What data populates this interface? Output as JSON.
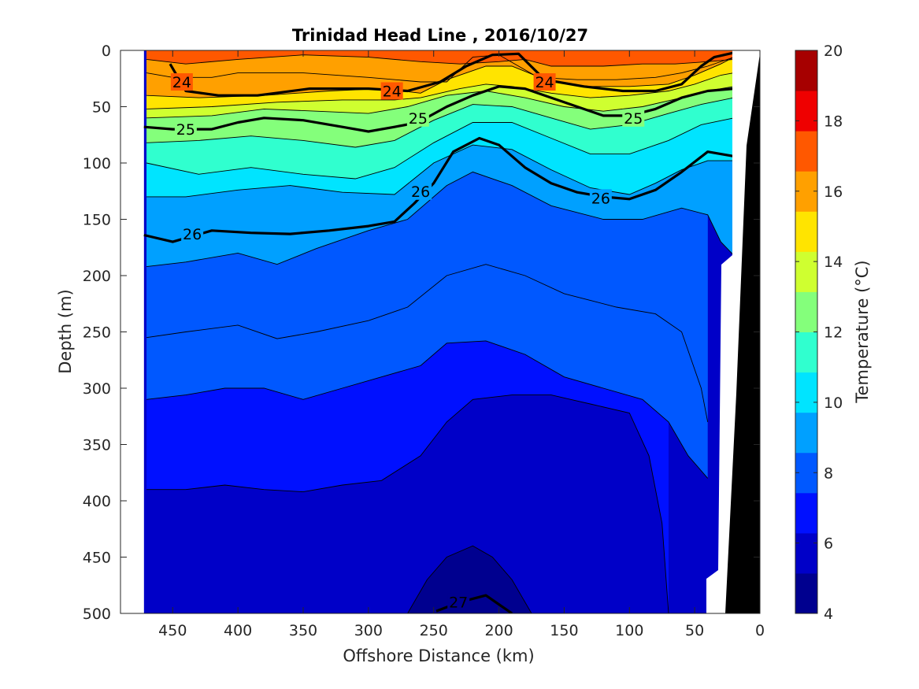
{
  "chart_data": {
    "type": "heatmap",
    "title": "Trinidad Head Line , 2016/10/27",
    "xlabel": "Offshore Distance (km)",
    "ylabel": "Depth (m)",
    "colorbar_label": "Temperature (°C)",
    "xlim": [
      490,
      0
    ],
    "ylim": [
      0,
      500
    ],
    "x_reversed": true,
    "y_reversed": true,
    "x_ticks": [
      "450",
      "400",
      "350",
      "300",
      "250",
      "200",
      "150",
      "100",
      "50",
      "0"
    ],
    "y_ticks": [
      "0",
      "50",
      "100",
      "150",
      "200",
      "250",
      "300",
      "350",
      "400",
      "450",
      "500"
    ],
    "colorbar_ticks": [
      "4",
      "6",
      "8",
      "10",
      "12",
      "14",
      "16",
      "18",
      "20"
    ],
    "colorbar_range": [
      4,
      20
    ],
    "data_extent_km": [
      472,
      20
    ],
    "colormap": [
      "#00008f",
      "#0000c8",
      "#0010ff",
      "#0058ff",
      "#00a0ff",
      "#00e4ff",
      "#30ffcf",
      "#84ff7b",
      "#cfff30",
      "#ffe400",
      "#ffa000",
      "#ff5800",
      "#ef0000",
      "#a60000"
    ],
    "isotherms": [
      {
        "T": 17,
        "x": [
          470,
          440,
          400,
          350,
          300,
          260,
          230,
          200,
          180,
          160,
          120,
          90,
          65,
          40,
          20
        ],
        "d": [
          8,
          12,
          8,
          4,
          6,
          10,
          12,
          10,
          8,
          14,
          14,
          12,
          12,
          10,
          8
        ]
      },
      {
        "T": 16,
        "x": [
          470,
          450,
          420,
          400,
          380,
          350,
          300,
          260,
          240,
          220,
          200,
          170,
          140,
          110,
          80,
          60,
          40,
          20
        ],
        "d": [
          20,
          24,
          24,
          20,
          20,
          20,
          24,
          28,
          28,
          6,
          4,
          24,
          26,
          26,
          24,
          20,
          14,
          6
        ]
      },
      {
        "T": 15,
        "x": [
          470,
          430,
          380,
          330,
          290,
          260,
          240,
          210,
          190,
          160,
          130,
          100,
          70,
          50,
          30,
          20
        ],
        "d": [
          40,
          42,
          40,
          36,
          34,
          38,
          26,
          14,
          14,
          28,
          32,
          32,
          30,
          22,
          12,
          6
        ]
      },
      {
        "T": 14,
        "x": [
          470,
          420,
          370,
          320,
          280,
          260,
          230,
          210,
          190,
          160,
          130,
          100,
          70,
          50,
          30,
          20
        ],
        "d": [
          52,
          50,
          46,
          44,
          44,
          42,
          34,
          30,
          32,
          38,
          42,
          40,
          36,
          30,
          22,
          20
        ]
      },
      {
        "T": 13,
        "x": [
          470,
          420,
          380,
          340,
          300,
          270,
          240,
          210,
          180,
          150,
          120,
          90,
          60,
          40,
          20
        ],
        "d": [
          60,
          58,
          52,
          54,
          56,
          50,
          40,
          36,
          42,
          50,
          54,
          50,
          42,
          36,
          32
        ]
      },
      {
        "T": 12,
        "x": [
          470,
          430,
          390,
          350,
          310,
          280,
          250,
          220,
          190,
          160,
          130,
          100,
          70,
          45,
          20
        ],
        "d": [
          82,
          80,
          76,
          80,
          86,
          80,
          62,
          48,
          50,
          60,
          70,
          66,
          56,
          48,
          42
        ]
      },
      {
        "T": 11,
        "x": [
          470,
          430,
          390,
          350,
          310,
          280,
          250,
          220,
          190,
          160,
          130,
          100,
          70,
          45,
          20
        ],
        "d": [
          100,
          110,
          104,
          110,
          114,
          104,
          82,
          64,
          64,
          78,
          92,
          92,
          80,
          66,
          60
        ]
      },
      {
        "T": 10,
        "x": [
          470,
          440,
          400,
          360,
          320,
          280,
          250,
          220,
          190,
          160,
          130,
          100,
          80,
          60,
          40,
          20
        ],
        "d": [
          130,
          130,
          124,
          120,
          126,
          128,
          100,
          84,
          88,
          106,
          122,
          128,
          118,
          106,
          98,
          98
        ]
      },
      {
        "T": 9,
        "x": [
          470,
          440,
          400,
          370,
          340,
          300,
          270,
          240,
          220,
          190,
          160,
          120,
          90,
          60,
          40,
          30,
          20
        ],
        "d": [
          192,
          188,
          180,
          190,
          176,
          160,
          150,
          120,
          108,
          120,
          138,
          150,
          150,
          140,
          146,
          170,
          182
        ]
      },
      {
        "T": 8,
        "x": [
          470,
          440,
          400,
          370,
          340,
          300,
          270,
          240,
          210,
          180,
          150,
          110,
          80,
          60,
          45,
          40
        ],
        "d": [
          255,
          250,
          244,
          256,
          250,
          240,
          228,
          200,
          190,
          200,
          216,
          228,
          234,
          250,
          300,
          330
        ]
      },
      {
        "T": 7,
        "x": [
          470,
          440,
          410,
          380,
          350,
          320,
          290,
          260,
          240,
          210,
          180,
          150,
          120,
          90,
          70,
          55,
          40
        ],
        "d": [
          310,
          306,
          300,
          300,
          310,
          300,
          290,
          280,
          260,
          258,
          270,
          290,
          300,
          310,
          330,
          360,
          380
        ]
      },
      {
        "T": 6,
        "x": [
          470,
          440,
          410,
          380,
          350,
          320,
          290,
          260,
          240,
          220,
          190,
          160,
          130,
          100,
          85,
          75,
          70
        ],
        "d": [
          390,
          390,
          386,
          390,
          392,
          386,
          382,
          360,
          330,
          310,
          306,
          306,
          314,
          322,
          360,
          420,
          500
        ]
      },
      {
        "T": 5,
        "x": [
          270,
          255,
          240,
          220,
          205,
          190,
          175
        ],
        "d": [
          500,
          470,
          450,
          440,
          450,
          470,
          500
        ]
      }
    ],
    "density_contours": [
      {
        "label": "24",
        "x": [
          452,
          440,
          415,
          385,
          345,
          300,
          270,
          245,
          225,
          205,
          185,
          165,
          135,
          105,
          80,
          60,
          45,
          35,
          20
        ],
        "d": [
          12,
          36,
          40,
          40,
          34,
          34,
          36,
          28,
          14,
          4,
          3,
          26,
          32,
          36,
          36,
          30,
          14,
          6,
          2
        ],
        "label_at": [
          {
            "x": 443,
            "d": 28,
            "text": "24"
          },
          {
            "x": 282,
            "d": 36,
            "text": "24"
          },
          {
            "x": 165,
            "d": 28,
            "text": "24"
          }
        ]
      },
      {
        "label": "25",
        "x": [
          472,
          450,
          420,
          400,
          380,
          350,
          320,
          300,
          280,
          262,
          240,
          220,
          200,
          180,
          160,
          140,
          120,
          100,
          80,
          60,
          40,
          20
        ],
        "d": [
          68,
          70,
          70,
          64,
          60,
          62,
          68,
          72,
          68,
          64,
          50,
          40,
          32,
          34,
          42,
          50,
          58,
          58,
          52,
          42,
          36,
          34
        ],
        "label_at": [
          {
            "x": 440,
            "d": 70,
            "text": "25"
          },
          {
            "x": 262,
            "d": 60,
            "text": "25"
          },
          {
            "x": 97,
            "d": 60,
            "text": "25"
          }
        ]
      },
      {
        "label": "26",
        "x": [
          472,
          450,
          420,
          390,
          360,
          330,
          300,
          280,
          265,
          250,
          235,
          215,
          200,
          180,
          160,
          140,
          120,
          100,
          80,
          60,
          40,
          20
        ],
        "d": [
          164,
          170,
          160,
          162,
          163,
          160,
          156,
          152,
          136,
          118,
          90,
          78,
          84,
          104,
          118,
          126,
          130,
          132,
          124,
          108,
          90,
          94
        ],
        "label_at": [
          {
            "x": 435,
            "d": 163,
            "text": "26"
          },
          {
            "x": 260,
            "d": 125,
            "text": "26"
          },
          {
            "x": 122,
            "d": 131,
            "text": "26"
          }
        ]
      },
      {
        "label": "27",
        "x": [
          248,
          230,
          210,
          190
        ],
        "d": [
          498,
          490,
          484,
          500
        ],
        "label_at": [
          {
            "x": 231,
            "d": 490,
            "text": "27"
          }
        ]
      }
    ]
  }
}
